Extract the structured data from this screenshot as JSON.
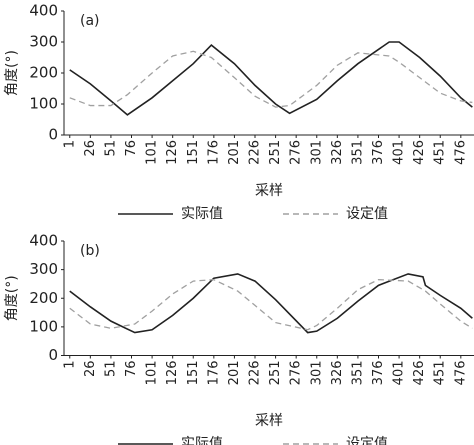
{
  "chart_data": [
    {
      "type": "line",
      "label": "(a)",
      "x_label": "采样",
      "y_label": "角度(°)",
      "x": [
        1,
        26,
        51,
        71,
        101,
        126,
        151,
        173,
        201,
        226,
        251,
        268,
        301,
        326,
        351,
        389,
        401,
        426,
        451,
        476,
        490
      ],
      "series": [
        {
          "name": "实际值",
          "color": "#222222",
          "dashed": false,
          "values": [
            210,
            165,
            110,
            65,
            120,
            175,
            230,
            290,
            230,
            160,
            100,
            70,
            115,
            175,
            230,
            300,
            300,
            250,
            190,
            120,
            90
          ]
        },
        {
          "name": "设定值",
          "color": "#a0a0a0",
          "dashed": true,
          "values": [
            120,
            95,
            95,
            130,
            200,
            255,
            270,
            250,
            185,
            125,
            90,
            95,
            160,
            225,
            265,
            255,
            235,
            185,
            135,
            110,
            105
          ]
        }
      ],
      "xlim": [
        -6,
        492
      ],
      "ylim": [
        0,
        400
      ],
      "xticks": [
        1,
        26,
        51,
        76,
        101,
        126,
        151,
        176,
        201,
        226,
        251,
        276,
        301,
        326,
        351,
        376,
        401,
        426,
        451,
        476
      ],
      "yticks": [
        0,
        100,
        200,
        300,
        400
      ]
    },
    {
      "type": "line",
      "label": "(b)",
      "x_label": "采样",
      "y_label": "角度(°)",
      "x": [
        1,
        26,
        51,
        80,
        101,
        126,
        151,
        176,
        205,
        226,
        251,
        290,
        301,
        326,
        351,
        376,
        412,
        430,
        433,
        451,
        476,
        490
      ],
      "series": [
        {
          "name": "实际值",
          "color": "#222222",
          "dashed": false,
          "values": [
            225,
            170,
            120,
            80,
            90,
            140,
            200,
            270,
            285,
            260,
            195,
            80,
            85,
            130,
            190,
            245,
            285,
            275,
            245,
            210,
            165,
            130
          ]
        },
        {
          "name": "设定值",
          "color": "#a0a0a0",
          "dashed": true,
          "values": [
            165,
            110,
            95,
            110,
            155,
            215,
            260,
            265,
            225,
            175,
            115,
            90,
            105,
            165,
            230,
            265,
            260,
            230,
            225,
            180,
            120,
            95
          ]
        }
      ],
      "xlim": [
        -6,
        492
      ],
      "ylim": [
        0,
        400
      ],
      "xticks": [
        1,
        26,
        51,
        76,
        101,
        126,
        151,
        176,
        201,
        226,
        251,
        276,
        301,
        326,
        351,
        376,
        401,
        426,
        451,
        476
      ],
      "yticks": [
        0,
        100,
        200,
        300,
        400
      ]
    }
  ]
}
